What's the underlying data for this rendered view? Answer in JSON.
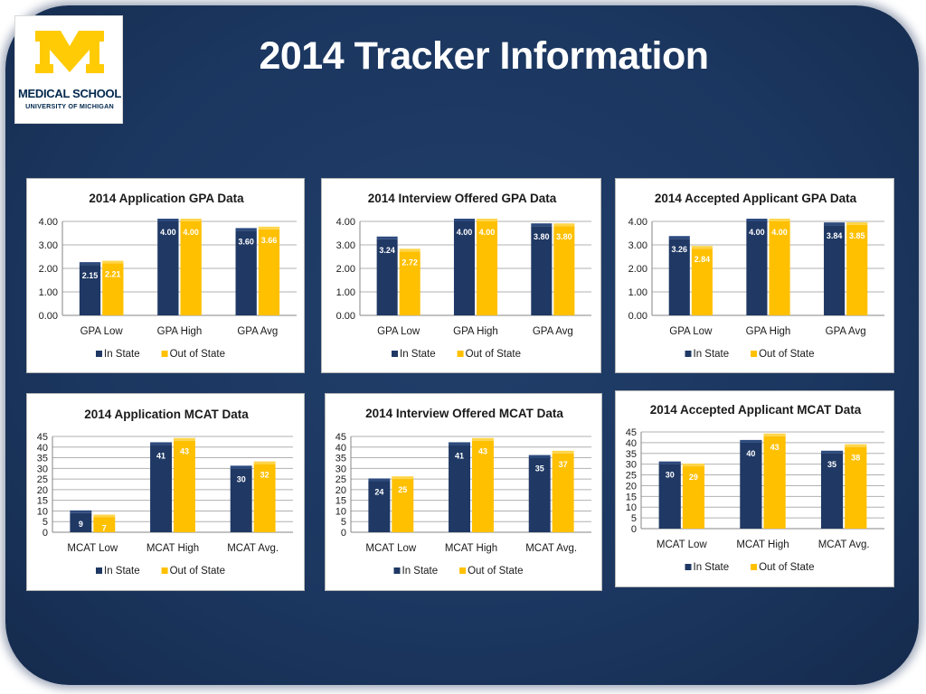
{
  "slide": {
    "title": "2014 Tracker Information"
  },
  "logo": {
    "line1": "MEDICAL SCHOOL",
    "line2": "UNIVERSITY OF MICHIGAN",
    "color": "#ffcb05"
  },
  "colors": {
    "in_state": "#1f3864",
    "out_of_state": "#ffc000"
  },
  "chart_data": [
    {
      "type": "bar",
      "title": "2014 Application GPA Data",
      "categories": [
        "GPA Low",
        "GPA High",
        "GPA Avg"
      ],
      "series": [
        {
          "name": "In State",
          "values": [
            2.15,
            4.0,
            3.6
          ],
          "labels": [
            "2.15",
            "4.00",
            "3.60"
          ]
        },
        {
          "name": "Out of State",
          "values": [
            2.21,
            4.0,
            3.66
          ],
          "labels": [
            "2.21",
            "4.00",
            "3.66"
          ]
        }
      ],
      "ylim": [
        0,
        4
      ],
      "yticks": [
        "0.00",
        "1.00",
        "2.00",
        "3.00",
        "4.00"
      ],
      "legend": "bottom",
      "grid": true
    },
    {
      "type": "bar",
      "title": "2014 Interview Offered GPA Data",
      "categories": [
        "GPA Low",
        "GPA High",
        "GPA Avg"
      ],
      "series": [
        {
          "name": "In State",
          "values": [
            3.24,
            4.0,
            3.8
          ],
          "labels": [
            "3.24",
            "4.00",
            "3.80"
          ]
        },
        {
          "name": "Out of State",
          "values": [
            2.72,
            4.0,
            3.8
          ],
          "labels": [
            "2.72",
            "4.00",
            "3.80"
          ]
        }
      ],
      "ylim": [
        0,
        4
      ],
      "yticks": [
        "0.00",
        "1.00",
        "2.00",
        "3.00",
        "4.00"
      ],
      "legend": "bottom",
      "grid": true
    },
    {
      "type": "bar",
      "title": "2014 Accepted Applicant GPA Data",
      "categories": [
        "GPA Low",
        "GPA High",
        "GPA Avg"
      ],
      "series": [
        {
          "name": "In State",
          "values": [
            3.26,
            4.0,
            3.84
          ],
          "labels": [
            "3.26",
            "4.00",
            "3.84"
          ]
        },
        {
          "name": "Out of State",
          "values": [
            2.84,
            4.0,
            3.85
          ],
          "labels": [
            "2.84",
            "4.00",
            "3.85"
          ]
        }
      ],
      "ylim": [
        0,
        4
      ],
      "yticks": [
        "0.00",
        "1.00",
        "2.00",
        "3.00",
        "4.00"
      ],
      "legend": "bottom",
      "grid": true
    },
    {
      "type": "bar",
      "title": "2014 Application MCAT Data",
      "categories": [
        "MCAT Low",
        "MCAT High",
        "MCAT Avg."
      ],
      "series": [
        {
          "name": "In State",
          "values": [
            9,
            41,
            30
          ],
          "labels": [
            "9",
            "41",
            "30"
          ]
        },
        {
          "name": "Out of State",
          "values": [
            7,
            43,
            32
          ],
          "labels": [
            "7",
            "43",
            "32"
          ]
        }
      ],
      "ylim": [
        0,
        45
      ],
      "yticks": [
        "0",
        "5",
        "10",
        "15",
        "20",
        "25",
        "30",
        "35",
        "40",
        "45"
      ],
      "legend": "bottom",
      "grid": true
    },
    {
      "type": "bar",
      "title": "2014 Interview Offered MCAT Data",
      "categories": [
        "MCAT Low",
        "MCAT High",
        "MCAT Avg."
      ],
      "series": [
        {
          "name": "In State",
          "values": [
            24,
            41,
            35
          ],
          "labels": [
            "24",
            "41",
            "35"
          ]
        },
        {
          "name": "Out of State",
          "values": [
            25,
            43,
            37
          ],
          "labels": [
            "25",
            "43",
            "37"
          ]
        }
      ],
      "ylim": [
        0,
        45
      ],
      "yticks": [
        "0",
        "5",
        "10",
        "15",
        "20",
        "25",
        "30",
        "35",
        "40",
        "45"
      ],
      "legend": "bottom",
      "grid": true
    },
    {
      "type": "bar",
      "title": "2014 Accepted Applicant MCAT Data",
      "categories": [
        "MCAT Low",
        "MCAT High",
        "MCAT Avg."
      ],
      "series": [
        {
          "name": "In State",
          "values": [
            30,
            40,
            35
          ],
          "labels": [
            "30",
            "40",
            "35"
          ]
        },
        {
          "name": "Out of State",
          "values": [
            29,
            43,
            38
          ],
          "labels": [
            "29",
            "43",
            "38"
          ]
        }
      ],
      "ylim": [
        0,
        45
      ],
      "yticks": [
        "0",
        "5",
        "10",
        "15",
        "20",
        "25",
        "30",
        "35",
        "40",
        "45"
      ],
      "legend": "bottom",
      "grid": true
    }
  ]
}
